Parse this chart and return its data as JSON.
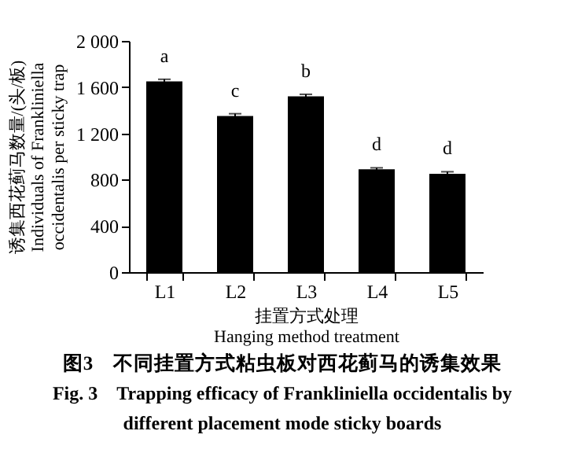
{
  "chart_data": {
    "type": "bar",
    "categories": [
      "L1",
      "L2",
      "L3",
      "L4",
      "L5"
    ],
    "values": [
      1650,
      1350,
      1520,
      890,
      850
    ],
    "errors": [
      18,
      20,
      18,
      12,
      18
    ],
    "color": "#000000",
    "ylabel": "诱集西花蓟马数量/(头/板)\nIndividuals of Frankliniella\noccidentalis per sticky trap",
    "xlabel": "挂置方式处理\nHanging method treatment",
    "ylim": [
      0,
      2000
    ],
    "yticks": [
      0,
      400,
      800,
      {
        "value": 1200,
        "label": "1 200"
      },
      {
        "value": 1600,
        "label": "1 600"
      },
      {
        "value": 2000,
        "label": "2 000"
      }
    ],
    "grid": false,
    "annotations": [
      {
        "text": "a",
        "x": "L1",
        "y": 1650
      },
      {
        "text": "c",
        "x": "L2",
        "y": 1350
      },
      {
        "text": "b",
        "x": "L3",
        "y": 1520
      },
      {
        "text": "d",
        "x": "L4",
        "y": 890
      },
      {
        "text": "d",
        "x": "L5",
        "y": 850
      },
      "图3　不同挂置方式粘虫板对西花蓟马的诱集效果",
      "Fig. 3　Trapping efficacy of Frankliniella occidentalis by",
      "different placement mode sticky boards"
    ]
  }
}
